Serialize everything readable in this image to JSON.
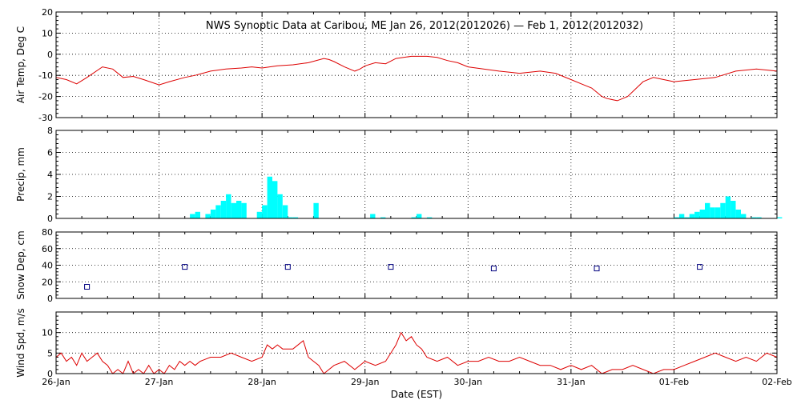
{
  "title": "NWS Synoptic Data at Caribou, ME   Jan 26, 2012(2012026) — Feb  1, 2012(2012032)",
  "colors": {
    "temp": "#dd0000",
    "precip": "#00ffff",
    "snow": "#000080",
    "wind": "#dd0000"
  },
  "chart_data": [
    {
      "type": "line",
      "ylabel": "Air Temp, Deg C",
      "ylim": [
        -30,
        20
      ],
      "yticks": [
        -30,
        -20,
        -10,
        0,
        10,
        20
      ],
      "grid": true,
      "x": [
        0,
        0.1,
        0.2,
        0.3,
        0.45,
        0.55,
        0.65,
        0.75,
        0.85,
        1.0,
        1.1,
        1.25,
        1.35,
        1.5,
        1.65,
        1.8,
        1.9,
        2.0,
        2.15,
        2.3,
        2.45,
        2.6,
        2.65,
        2.7,
        2.8,
        2.9,
        2.95,
        3.0,
        3.1,
        3.2,
        3.3,
        3.45,
        3.6,
        3.7,
        3.8,
        3.9,
        4.0,
        4.15,
        4.3,
        4.5,
        4.7,
        4.85,
        5.0,
        5.1,
        5.2,
        5.25,
        5.3,
        5.35,
        5.45,
        5.55,
        5.7,
        5.8,
        5.9,
        6.0,
        6.2,
        6.4,
        6.6,
        6.8,
        7.0
      ],
      "series": [
        {
          "values": [
            -11,
            -12,
            -14,
            -11,
            -6,
            -7,
            -11,
            -10.5,
            -12,
            -14.5,
            -13,
            -11,
            -10,
            -8,
            -7,
            -6.5,
            -6,
            -6.5,
            -5.5,
            -5,
            -4,
            -2,
            -2.5,
            -3.5,
            -6,
            -8,
            -7,
            -5.5,
            -4,
            -4.5,
            -2,
            -1,
            -1,
            -1.5,
            -3,
            -4,
            -6,
            -7,
            -8,
            -9,
            -8,
            -9,
            -12,
            -14,
            -16,
            -18,
            -20,
            -21,
            -22,
            -20,
            -13,
            -11,
            -12,
            -13,
            -12,
            -11,
            -8,
            -7,
            -8
          ]
        }
      ]
    },
    {
      "type": "bar",
      "ylabel": "Precip, mm",
      "ylim": [
        0,
        8
      ],
      "yticks": [
        0,
        2,
        4,
        6,
        8
      ],
      "grid": true,
      "x": [
        1.3,
        1.35,
        1.45,
        1.5,
        1.55,
        1.6,
        1.65,
        1.7,
        1.75,
        1.8,
        1.95,
        2.0,
        2.05,
        2.1,
        2.15,
        2.2,
        2.25,
        2.3,
        2.5,
        3.05,
        3.15,
        3.45,
        3.5,
        3.6,
        6.0,
        6.05,
        6.1,
        6.15,
        6.2,
        6.25,
        6.3,
        6.35,
        6.4,
        6.45,
        6.5,
        6.55,
        6.6,
        6.65,
        6.75,
        6.8,
        7.0
      ],
      "values": [
        0.4,
        0.6,
        0.4,
        0.8,
        1.2,
        1.6,
        2.2,
        1.4,
        1.6,
        1.4,
        0.6,
        1.2,
        3.8,
        3.4,
        2.2,
        1.2,
        0.1,
        0.1,
        1.4,
        0.4,
        0.1,
        0.1,
        0.4,
        0.1,
        0.1,
        0.4,
        0.1,
        0.4,
        0.6,
        0.8,
        1.4,
        1.0,
        1.0,
        1.4,
        2.0,
        1.6,
        0.8,
        0.4,
        0.1,
        0.1,
        0.1
      ]
    },
    {
      "type": "scatter",
      "ylabel": "Snow Dep, cm",
      "ylim": [
        0,
        80
      ],
      "yticks": [
        0,
        20,
        40,
        60,
        80
      ],
      "grid": true,
      "x": [
        0.3,
        1.25,
        2.25,
        3.25,
        4.25,
        5.25,
        6.25
      ],
      "values": [
        14,
        38,
        38,
        38,
        36,
        36,
        38
      ]
    },
    {
      "type": "line",
      "ylabel": "Wind Spd, m/s",
      "ylim": [
        0,
        15
      ],
      "yticks": [
        0,
        5,
        10
      ],
      "grid": true,
      "x": [
        0,
        0.05,
        0.1,
        0.15,
        0.2,
        0.25,
        0.3,
        0.35,
        0.4,
        0.45,
        0.5,
        0.55,
        0.6,
        0.65,
        0.7,
        0.75,
        0.8,
        0.85,
        0.9,
        0.95,
        1.0,
        1.05,
        1.1,
        1.15,
        1.2,
        1.25,
        1.3,
        1.35,
        1.4,
        1.5,
        1.6,
        1.7,
        1.8,
        1.9,
        2.0,
        2.05,
        2.1,
        2.15,
        2.2,
        2.3,
        2.4,
        2.45,
        2.5,
        2.55,
        2.6,
        2.7,
        2.8,
        2.9,
        3.0,
        3.1,
        3.2,
        3.3,
        3.35,
        3.4,
        3.45,
        3.5,
        3.55,
        3.6,
        3.7,
        3.8,
        3.9,
        4.0,
        4.1,
        4.2,
        4.3,
        4.4,
        4.5,
        4.6,
        4.7,
        4.8,
        4.9,
        5.0,
        5.1,
        5.2,
        5.3,
        5.4,
        5.5,
        5.6,
        5.7,
        5.8,
        5.9,
        6.0,
        6.1,
        6.2,
        6.3,
        6.4,
        6.5,
        6.6,
        6.7,
        6.8,
        6.9,
        7.0
      ],
      "series": [
        {
          "values": [
            4,
            5,
            3,
            4,
            2,
            5,
            3,
            4,
            5,
            3,
            2,
            0,
            1,
            0,
            3,
            0,
            1,
            0,
            2,
            0,
            1,
            0,
            2,
            1,
            3,
            2,
            3,
            2,
            3,
            4,
            4,
            5,
            4,
            3,
            4,
            7,
            6,
            7,
            6,
            6,
            8,
            4,
            3,
            2,
            0,
            2,
            3,
            1,
            3,
            2,
            3,
            7,
            10,
            8,
            9,
            7,
            6,
            4,
            3,
            4,
            2,
            3,
            3,
            4,
            3,
            3,
            4,
            3,
            2,
            2,
            1,
            2,
            1,
            2,
            0,
            1,
            1,
            2,
            1,
            0,
            1,
            1,
            2,
            3,
            4,
            5,
            4,
            3,
            4,
            3,
            5,
            4
          ]
        }
      ]
    }
  ],
  "x_axis": {
    "label": "Date (EST)",
    "ticks": [
      {
        "value": 0,
        "label": "26-Jan"
      },
      {
        "value": 1,
        "label": "27-Jan"
      },
      {
        "value": 2,
        "label": "28-Jan"
      },
      {
        "value": 3,
        "label": "29-Jan"
      },
      {
        "value": 4,
        "label": "30-Jan"
      },
      {
        "value": 5,
        "label": "31-Jan"
      },
      {
        "value": 6,
        "label": "01-Feb"
      },
      {
        "value": 7,
        "label": "02-Feb"
      }
    ]
  }
}
